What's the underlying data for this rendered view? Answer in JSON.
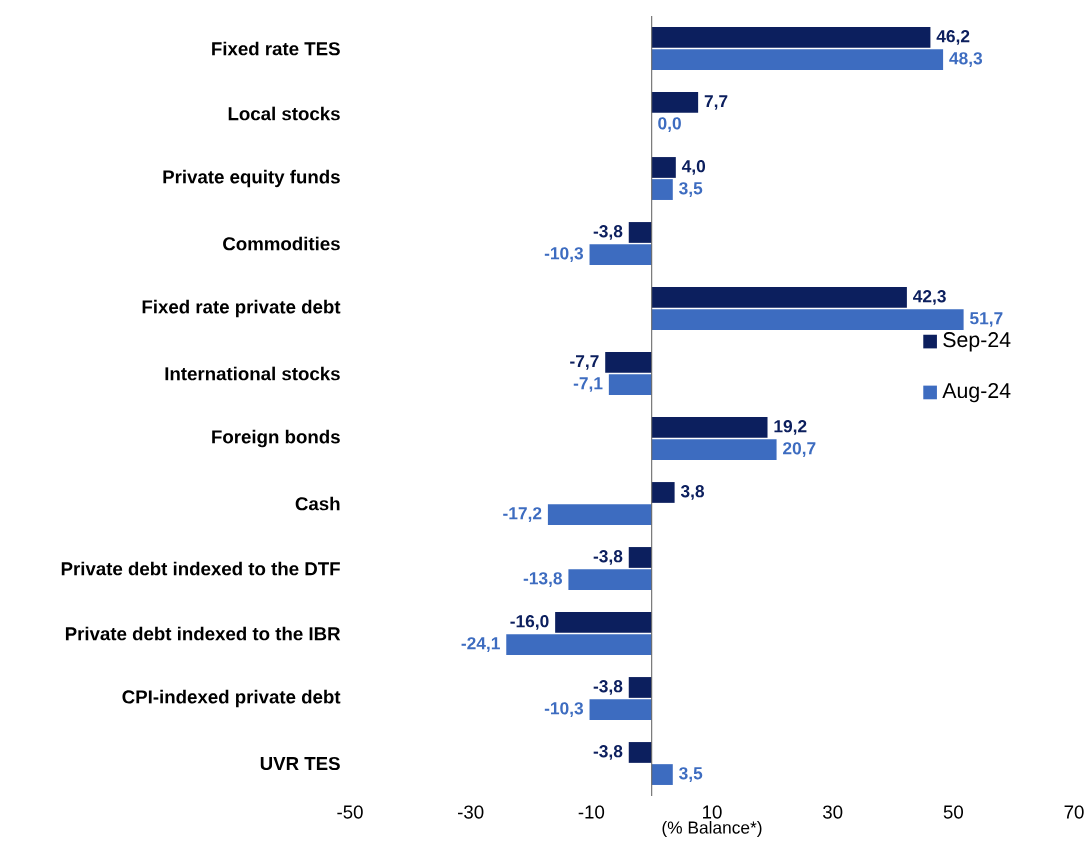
{
  "chart_data": {
    "type": "bar",
    "orientation": "horizontal",
    "xlabel": "(% Balance*)",
    "categories": [
      "Fixed rate TES",
      "Local stocks",
      "Private equity funds",
      "Commodities",
      "Fixed rate private debt",
      "International stocks",
      "Foreign bonds",
      "Cash",
      "Private debt indexed to the DTF",
      "Private debt indexed to the IBR",
      "CPI-indexed private debt",
      "UVR TES"
    ],
    "series": [
      {
        "name": "Sep-24",
        "color": "#0c1f5e",
        "values": [
          46.2,
          7.7,
          4.0,
          -3.8,
          42.3,
          -7.7,
          19.2,
          3.8,
          -3.8,
          -16.0,
          -3.8,
          -3.8
        ],
        "value_labels": [
          "46,2",
          "7,7",
          "4,0",
          "-3,8",
          "42,3",
          "-7,7",
          "19,2",
          "3,8",
          "-3,8",
          "-16,0",
          "-3,8",
          "-3,8"
        ]
      },
      {
        "name": "Aug-24",
        "color": "#3d6cc0",
        "values": [
          48.3,
          0.0,
          3.5,
          -10.3,
          51.7,
          -7.1,
          20.7,
          -17.2,
          -13.8,
          -24.1,
          -10.3,
          3.5
        ],
        "value_labels": [
          "48,3",
          "0,0",
          "3,5",
          "-10,3",
          "51,7",
          "-7,1",
          "20,7",
          "-17,2",
          "-13,8",
          "-24,1",
          "-10,3",
          "3,5"
        ]
      }
    ],
    "xlim": [
      -50,
      70
    ],
    "xticks": [
      -50,
      -30,
      -10,
      10,
      30,
      50,
      70
    ],
    "grid": false,
    "legend": "right"
  }
}
